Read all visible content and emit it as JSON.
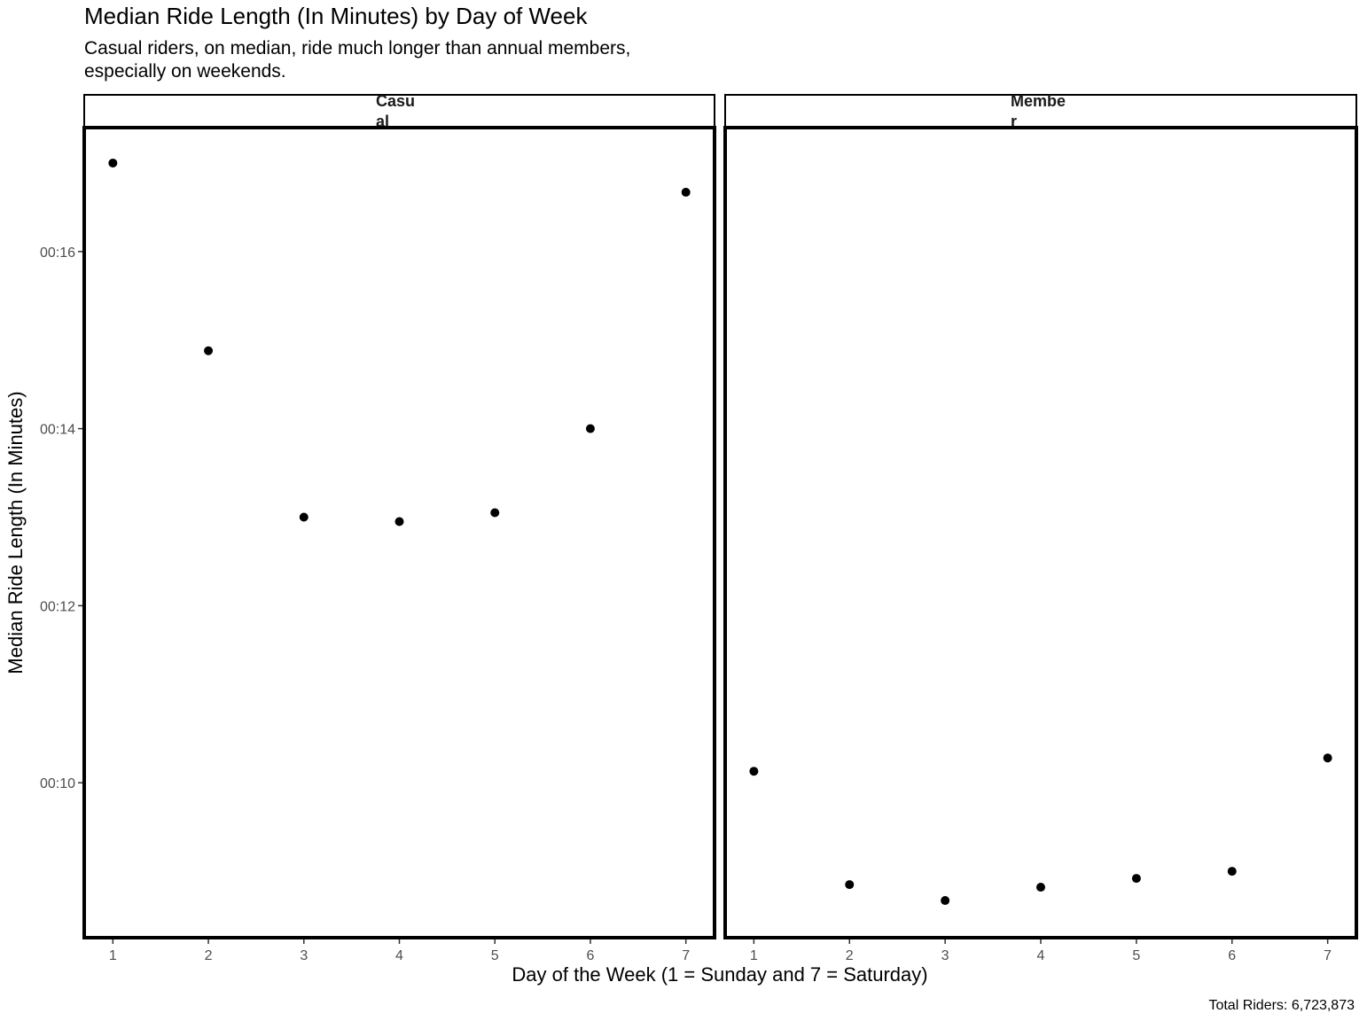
{
  "chart_data": {
    "type": "scatter",
    "title": "Median Ride Length (In Minutes) by Day of Week",
    "subtitle_lines": [
      "Casual riders, on median, ride much longer than annual members,",
      "especially on weekends."
    ],
    "xlabel": "Day of the Week (1 = Sunday and 7 = Saturday)",
    "ylabel": "Median Ride Length (In Minutes)",
    "caption": "Total Riders:  6,723,873",
    "x": [
      1,
      2,
      3,
      4,
      5,
      6,
      7
    ],
    "x_tick_labels": [
      "1",
      "2",
      "3",
      "4",
      "5",
      "6",
      "7"
    ],
    "xlim": [
      0.7,
      7.3
    ],
    "y_units": "minutes",
    "ylim": [
      8.25,
      17.4
    ],
    "y_ticks": [
      10,
      12,
      14,
      16
    ],
    "y_tick_labels": [
      "00:10",
      "00:12",
      "00:14",
      "00:16"
    ],
    "grid": false,
    "legend": "none",
    "point_color": "#000000",
    "panels": [
      {
        "strip_lines": [
          "Casu",
          "al"
        ],
        "values": [
          17.0,
          14.88,
          13.0,
          12.95,
          13.05,
          14.0,
          16.67
        ]
      },
      {
        "strip_lines": [
          "Membe",
          "r"
        ],
        "values": [
          10.13,
          8.85,
          8.67,
          8.82,
          8.92,
          9.0,
          10.28
        ]
      }
    ]
  }
}
